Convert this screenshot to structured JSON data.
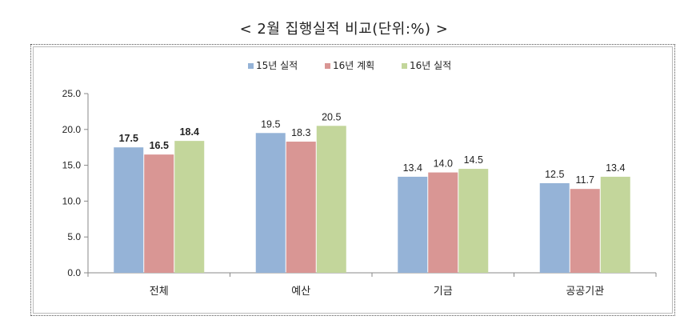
{
  "chart_data": {
    "type": "bar",
    "title": "< 2월 집행실적 비교(단위:%) >",
    "categories": [
      "전체",
      "예산",
      "기금",
      "공공기관"
    ],
    "series": [
      {
        "name": "15년 실적",
        "values": [
          17.5,
          19.5,
          13.4,
          12.5
        ],
        "color": "#95b3d7"
      },
      {
        "name": "16년 계획",
        "values": [
          16.5,
          18.3,
          14.0,
          11.7
        ],
        "color": "#d99694"
      },
      {
        "name": "16년 실적",
        "values": [
          18.4,
          20.5,
          14.5,
          13.4
        ],
        "color": "#c3d69b"
      }
    ],
    "data_labels": [
      [
        "17.5",
        "19.5",
        "13.4",
        "12.5"
      ],
      [
        "16.5",
        "18.3",
        "14.0",
        "11.7"
      ],
      [
        "18.4",
        "20.5",
        "14.5",
        "13.4"
      ]
    ],
    "bold_categories": [
      "전체"
    ],
    "yticks": [
      "0.0",
      "5.0",
      "10.0",
      "15.0",
      "20.0",
      "25.0"
    ],
    "ylim": [
      0,
      25
    ],
    "xlabel": "",
    "ylabel": "",
    "legend": "top-center",
    "grid": false
  }
}
